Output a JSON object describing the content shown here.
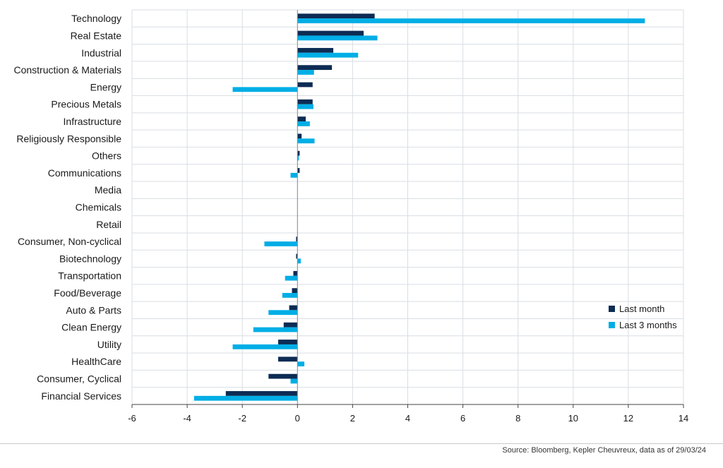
{
  "chart_data": {
    "type": "bar",
    "orientation": "horizontal",
    "categories": [
      "Technology",
      "Real Estate",
      "Industrial",
      "Construction & Materials",
      "Energy",
      "Precious Metals",
      "Infrastructure",
      "Religiously Responsible",
      "Others",
      "Communications",
      "Media",
      "Chemicals",
      "Retail",
      "Consumer, Non-cyclical",
      "Biotechnology",
      "Transportation",
      "Food/Beverage",
      "Auto & Parts",
      "Clean Energy",
      "Utility",
      "HealthCare",
      "Consumer, Cyclical",
      "Financial Services"
    ],
    "series": [
      {
        "name": "Last month",
        "color": "#0d2c54",
        "values": [
          2.8,
          2.4,
          1.3,
          1.25,
          0.55,
          0.55,
          0.3,
          0.15,
          0.08,
          0.08,
          0.0,
          0.0,
          0.0,
          -0.05,
          -0.05,
          -0.15,
          -0.2,
          -0.3,
          -0.5,
          -0.7,
          -0.7,
          -1.05,
          -2.6
        ]
      },
      {
        "name": "Last 3 months",
        "color": "#00aee6",
        "values": [
          12.6,
          2.9,
          2.2,
          0.6,
          -2.35,
          0.58,
          0.45,
          0.62,
          0.05,
          -0.25,
          0.0,
          0.0,
          0.0,
          -1.2,
          0.12,
          -0.45,
          -0.55,
          -1.05,
          -1.6,
          -2.35,
          0.25,
          -0.25,
          -3.75
        ]
      }
    ],
    "xlim": [
      -6,
      14
    ],
    "xticks": [
      "-6",
      "-4",
      "-2",
      "0",
      "2",
      "4",
      "6",
      "8",
      "10",
      "12",
      "14"
    ],
    "grid": true,
    "legend_position": "bottom-right"
  },
  "source_note": "Source: Bloomberg, Kepler Cheuvreux, data as of 29/03/24"
}
